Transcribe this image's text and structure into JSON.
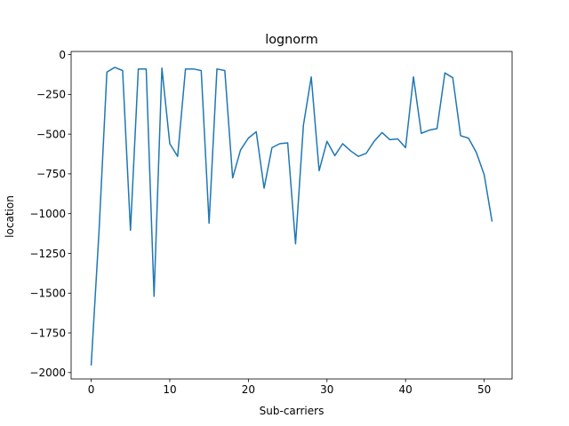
{
  "chart_data": {
    "type": "line",
    "title": "lognorm",
    "xlabel": "Sub-carriers",
    "ylabel": "location",
    "xlim": [
      -2.55,
      53.55
    ],
    "ylim": [
      -2040,
      20
    ],
    "xticks": [
      0,
      10,
      20,
      30,
      40,
      50
    ],
    "yticks": [
      0,
      -250,
      -500,
      -750,
      -1000,
      -1250,
      -1500,
      -1750,
      -2000
    ],
    "ytick_labels": [
      "0",
      "−250",
      "−500",
      "−750",
      "−1000",
      "−1250",
      "−1500",
      "−1750",
      "−2000"
    ],
    "grid": false,
    "color": "#1f77b4",
    "series": [
      {
        "x": [
          0,
          1,
          2,
          3,
          4,
          5,
          6,
          7,
          8,
          9,
          10,
          11,
          12,
          13,
          14,
          15,
          16,
          17,
          18,
          19,
          20,
          21,
          22,
          23,
          24,
          25,
          26,
          27,
          28,
          29,
          30,
          31,
          32,
          33,
          34,
          35,
          36,
          37,
          38,
          39,
          40,
          41,
          42,
          43,
          44,
          45,
          46,
          47,
          48,
          49,
          50,
          51
        ],
        "values": [
          -1955,
          -1110,
          -110,
          -80,
          -100,
          -1105,
          -90,
          -90,
          -1520,
          -85,
          -560,
          -640,
          -90,
          -90,
          -100,
          -1060,
          -90,
          -100,
          -775,
          -600,
          -525,
          -485,
          -840,
          -585,
          -560,
          -555,
          -1190,
          -445,
          -140,
          -730,
          -545,
          -635,
          -560,
          -605,
          -640,
          -620,
          -545,
          -490,
          -535,
          -530,
          -585,
          -140,
          -495,
          -475,
          -465,
          -115,
          -145,
          -510,
          -525,
          -615,
          -755,
          -1050
        ]
      }
    ]
  }
}
